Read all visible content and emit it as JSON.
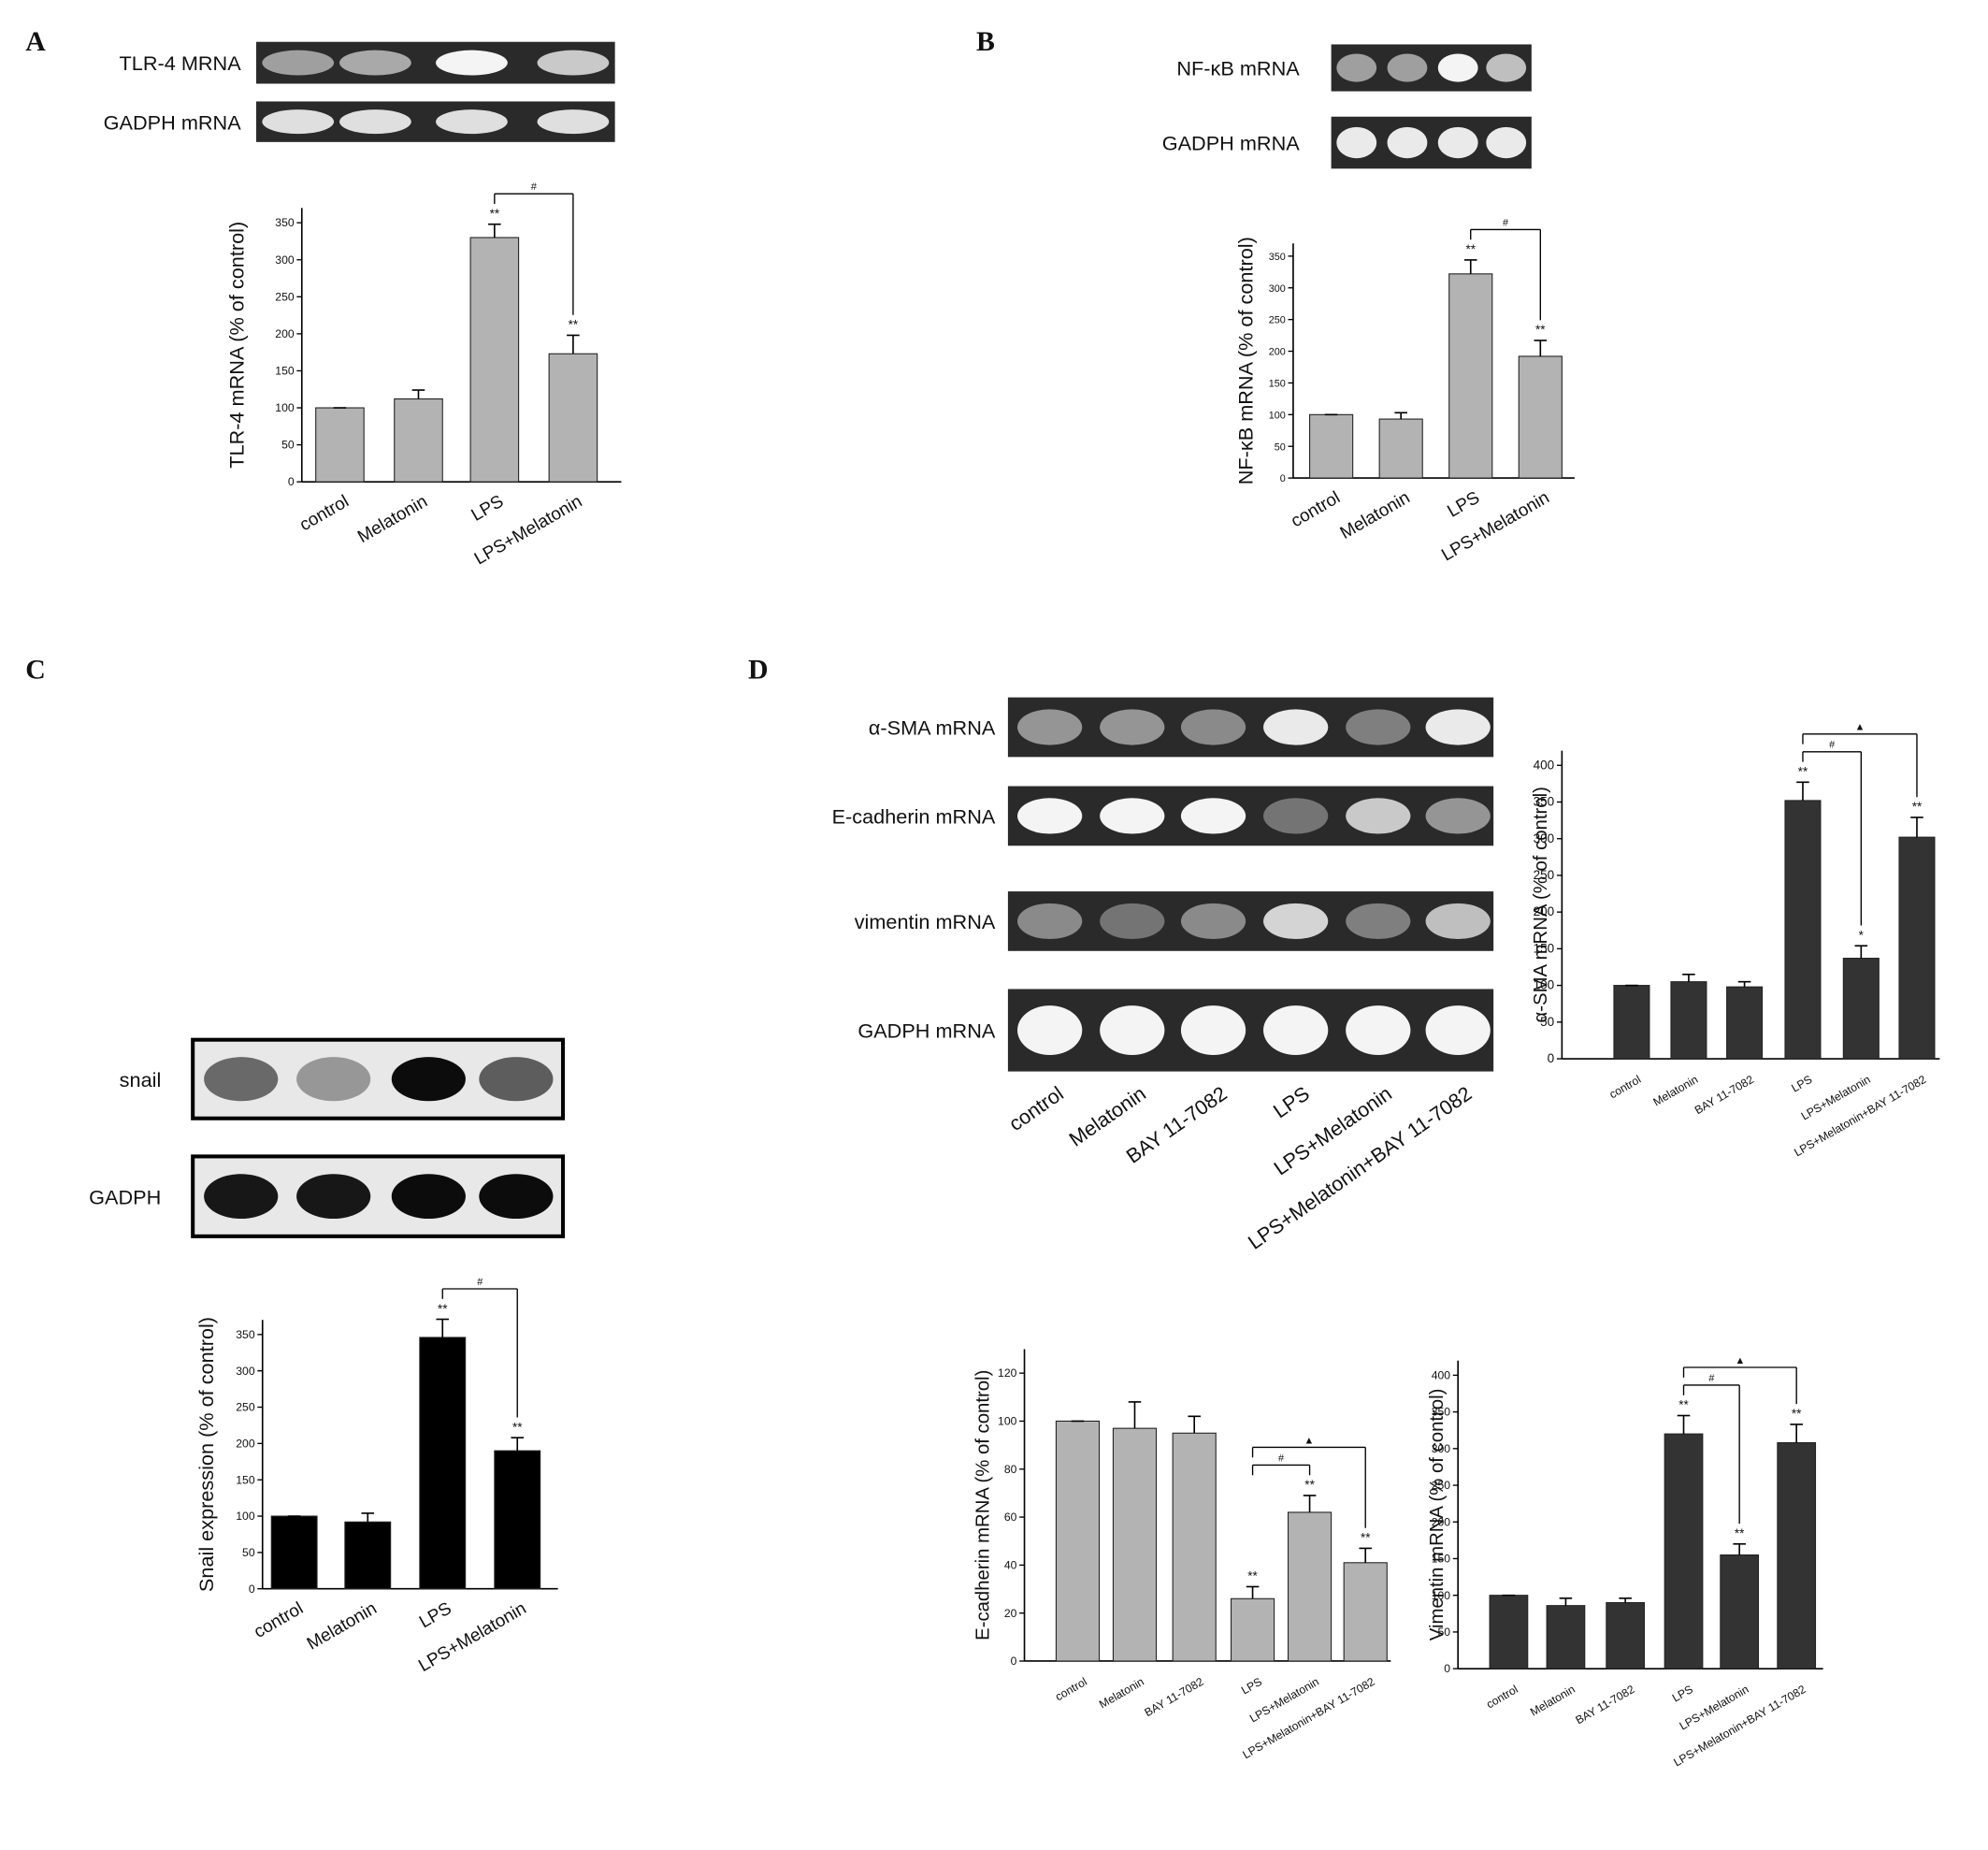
{
  "chart_data": [
    {
      "type": "bar",
      "panel": "A",
      "ylabel": "TLR-4 mRNA (% of control)",
      "categories": [
        "control",
        "Melatonin",
        "LPS",
        "LPS+Melatonin"
      ],
      "values": [
        100,
        112,
        330,
        173
      ],
      "errors": [
        0,
        12,
        18,
        25
      ],
      "color": "#b3b3b3",
      "ylim": [
        0,
        370
      ],
      "yticks": [
        0,
        50,
        100,
        150,
        200,
        250,
        300,
        350
      ],
      "stars": [
        null,
        null,
        "**",
        "**"
      ],
      "brackets": [
        {
          "from": "LPS",
          "to": "LPS+Melatonin",
          "label": "#"
        }
      ],
      "blots": [
        "TLR-4 MRNA",
        "GADPH mRNA"
      ]
    },
    {
      "type": "bar",
      "panel": "B",
      "ylabel": "NF-κB mRNA (% of control)",
      "categories": [
        "control",
        "Melatonin",
        "LPS",
        "LPS+Melatonin"
      ],
      "values": [
        100,
        93,
        322,
        192
      ],
      "errors": [
        0,
        10,
        22,
        25
      ],
      "color": "#b3b3b3",
      "ylim": [
        0,
        370
      ],
      "yticks": [
        0,
        50,
        100,
        150,
        200,
        250,
        300,
        350
      ],
      "stars": [
        null,
        null,
        "**",
        "**"
      ],
      "brackets": [
        {
          "from": "LPS",
          "to": "LPS+Melatonin",
          "label": "#"
        }
      ],
      "blots": [
        "NF-κB mRNA",
        "GADPH mRNA"
      ]
    },
    {
      "type": "bar",
      "panel": "C",
      "ylabel": "Snail expression (% of control)",
      "categories": [
        "control",
        "Melatonin",
        "LPS",
        "LPS+Melatonin"
      ],
      "values": [
        100,
        92,
        346,
        190
      ],
      "errors": [
        0,
        12,
        25,
        18
      ],
      "color": "#000000",
      "ylim": [
        0,
        370
      ],
      "yticks": [
        0,
        50,
        100,
        150,
        200,
        250,
        300,
        350
      ],
      "stars": [
        null,
        null,
        "**",
        "**"
      ],
      "brackets": [
        {
          "from": "LPS",
          "to": "LPS+Melatonin",
          "label": "#"
        }
      ],
      "blots": [
        "snail",
        "GADPH"
      ]
    },
    {
      "type": "bar",
      "panel": "D",
      "ylabel": "α-SMA mRNA (% of control)",
      "categories": [
        "control",
        "Melatonin",
        "BAY 11-7082",
        "LPS",
        "LPS+Melatonin",
        "LPS+Melatonin+BAY 11-7082"
      ],
      "values": [
        100,
        105,
        98,
        352,
        137,
        302
      ],
      "errors": [
        0,
        10,
        7,
        25,
        17,
        27
      ],
      "color": "#333333",
      "ylim": [
        0,
        420
      ],
      "yticks": [
        0,
        50,
        100,
        150,
        200,
        250,
        300,
        350,
        400
      ],
      "stars": [
        null,
        null,
        null,
        "**",
        "*",
        "**"
      ],
      "brackets": [
        {
          "from": "LPS",
          "to": "LPS+Melatonin",
          "label": "#"
        },
        {
          "from": "LPS",
          "to": "LPS+Melatonin+BAY 11-7082",
          "label": "▲"
        }
      ],
      "blots": [
        "α-SMA mRNA",
        "E-cadherin mRNA",
        "vimentin mRNA",
        "GADPH mRNA"
      ]
    },
    {
      "type": "bar",
      "ylabel": "E-cadherin mRNA (% of control)",
      "categories": [
        "control",
        "Melatonin",
        "BAY 11-7082",
        "LPS",
        "LPS+Melatonin",
        "LPS+Melatonin+BAY 11-7082"
      ],
      "values": [
        100,
        97,
        95,
        26,
        62,
        41
      ],
      "errors": [
        0,
        11,
        7,
        5,
        7,
        6
      ],
      "color": "#b3b3b3",
      "ylim": [
        0,
        130
      ],
      "yticks": [
        0,
        20,
        40,
        60,
        80,
        100,
        120
      ],
      "stars": [
        null,
        null,
        null,
        "**",
        "**",
        "**"
      ],
      "brackets": [
        {
          "from": "LPS",
          "to": "LPS+Melatonin",
          "label": "#"
        },
        {
          "from": "LPS",
          "to": "LPS+Melatonin+BAY 11-7082",
          "label": "▲"
        }
      ]
    },
    {
      "type": "bar",
      "ylabel": "Vimentin mRNA (% of control)",
      "categories": [
        "control",
        "Melatonin",
        "BAY 11-7082",
        "LPS",
        "LPS+Melatonin",
        "LPS+Melatonin+BAY 11-7082"
      ],
      "values": [
        100,
        86,
        90,
        320,
        155,
        308
      ],
      "errors": [
        0,
        10,
        6,
        25,
        15,
        25
      ],
      "color": "#333333",
      "ylim": [
        0,
        420
      ],
      "yticks": [
        0,
        50,
        100,
        150,
        200,
        250,
        300,
        350,
        400
      ],
      "stars": [
        null,
        null,
        null,
        "**",
        "**",
        "**"
      ],
      "brackets": [
        {
          "from": "LPS",
          "to": "LPS+Melatonin",
          "label": "#"
        },
        {
          "from": "LPS",
          "to": "LPS+Melatonin+BAY 11-7082",
          "label": "▲"
        }
      ]
    }
  ]
}
